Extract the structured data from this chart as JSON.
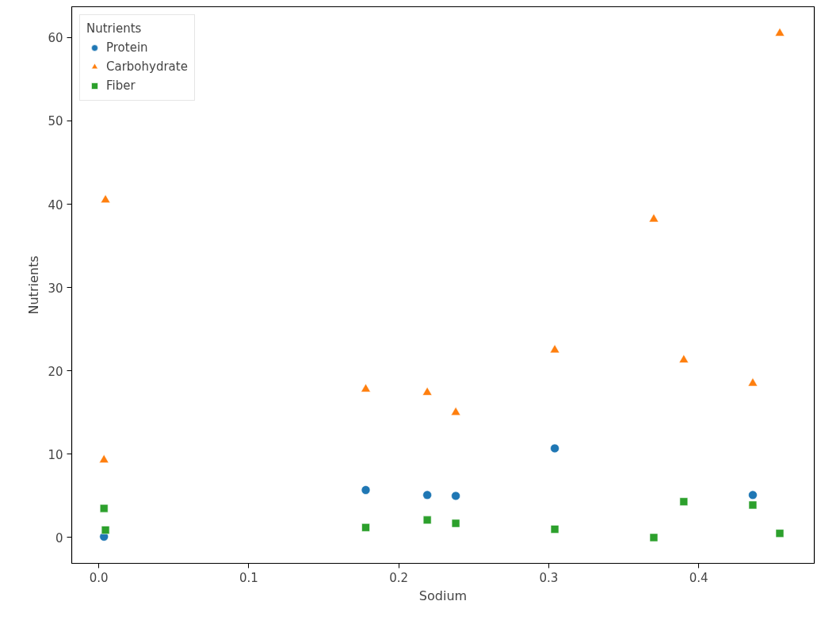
{
  "chart_data": {
    "type": "scatter",
    "xlabel": "Sodium",
    "ylabel": "Nutrients",
    "legend_title": "Nutrients",
    "legend": "top left",
    "grid": false,
    "x": [
      0.0035,
      0.0045,
      0.178,
      0.219,
      0.238,
      0.304,
      0.37,
      0.39,
      0.436,
      0.454
    ],
    "xlim": [
      -0.018,
      0.477
    ],
    "ylim": [
      -3.1,
      63.7
    ],
    "xticks": [
      {
        "value": 0,
        "label": "0.0"
      },
      0.1,
      0.2,
      0.3,
      0.4
    ],
    "yticks": [
      0,
      10,
      20,
      30,
      40,
      50,
      60
    ],
    "series": [
      {
        "name": "Protein",
        "color": "#1f77b4",
        "marker": "circle",
        "values": [
          0.1,
          null,
          5.7,
          5.1,
          5.0,
          10.7,
          null,
          null,
          5.1,
          null
        ]
      },
      {
        "name": "Carbohydrate",
        "color": "#ff7f0e",
        "marker": "triangle",
        "values": [
          9.3,
          40.5,
          17.8,
          17.4,
          15.0,
          22.5,
          38.2,
          21.3,
          18.5,
          60.5
        ]
      },
      {
        "name": "Fiber",
        "color": "#2ca02c",
        "marker": "square",
        "values": [
          3.5,
          0.9,
          1.2,
          2.1,
          1.7,
          1.0,
          0.0,
          4.3,
          3.9,
          0.5
        ]
      }
    ]
  }
}
